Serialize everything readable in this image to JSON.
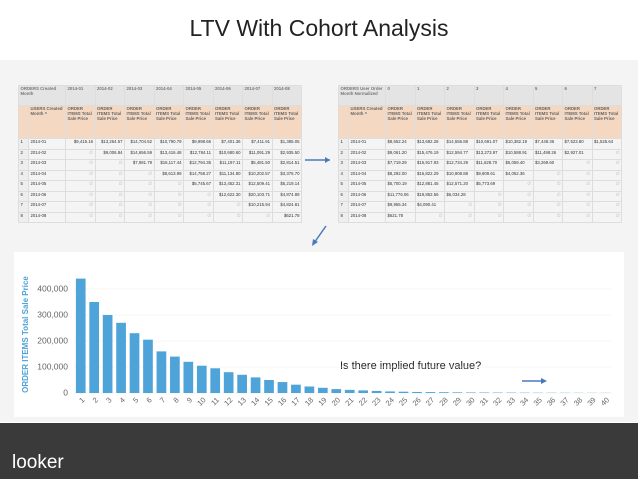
{
  "title": "LTV With Cohort Analysis",
  "left_table": {
    "corner": "ORDERS Created Month",
    "columns": [
      "2014-01",
      "2014-02",
      "2014-03",
      "2014-04",
      "2014-05",
      "2014-06",
      "2014-07",
      "2014-08"
    ],
    "sub_label": "USERS Created Month ^",
    "measures": [
      "ORDER ITEMS Total Sale Price",
      "ORDER ITEMS Total Sale Price",
      "ORDER ITEMS Total Sale Price",
      "ORDER ITEMS Total Sale Price",
      "ORDER ITEMS Total Sale Price",
      "ORDER ITEMS Total Sale Price",
      "ORDER ITEMS Total Sale Price",
      "ORDER ITEMS Total Sale Price"
    ],
    "rows": [
      {
        "n": "1",
        "label": "2014-01",
        "cells": [
          "$9,415.16",
          "$13,264.57",
          "$14,704.52",
          "$10,790.79",
          "$9,998.66",
          "$7,401.36",
          "$7,411.91",
          "$1,385.05"
        ]
      },
      {
        "n": "2",
        "label": "2014-02",
        "cells": [
          "∅",
          "$9,006.84",
          "$14,656.59",
          "$13,416.48",
          "$12,784.11",
          "$10,680.60",
          "$11,091.29",
          "$2,935.50"
        ]
      },
      {
        "n": "3",
        "label": "2014-03",
        "cells": [
          "∅",
          "∅",
          "$7,981.79",
          "$16,117.44",
          "$12,794.35",
          "$11,197.11",
          "$5,481.50",
          "$2,814.51"
        ]
      },
      {
        "n": "4",
        "label": "2014-04",
        "cells": [
          "∅",
          "∅",
          "∅",
          "$8,613.99",
          "$14,758.27",
          "$11,134.80",
          "$10,202.57",
          "$3,375.70"
        ]
      },
      {
        "n": "5",
        "label": "2014-05",
        "cells": [
          "∅",
          "∅",
          "∅",
          "∅",
          "$5,745.67",
          "$13,452.31",
          "$12,509.41",
          "$5,219.14"
        ]
      },
      {
        "n": "6",
        "label": "2014-06",
        "cells": [
          "∅",
          "∅",
          "∅",
          "∅",
          "∅",
          "$12,622.30",
          "$20,103.71",
          "$4,874.89"
        ]
      },
      {
        "n": "7",
        "label": "2014-07",
        "cells": [
          "∅",
          "∅",
          "∅",
          "∅",
          "∅",
          "∅",
          "$10,215.94",
          "$4,824.81"
        ]
      },
      {
        "n": "8",
        "label": "2014-08",
        "cells": [
          "∅",
          "∅",
          "∅",
          "∅",
          "∅",
          "∅",
          "∅",
          "$621.78"
        ]
      }
    ]
  },
  "right_table": {
    "corner": "ORDERS User Order Month Normalized",
    "columns": [
      "0",
      "1",
      "2",
      "3",
      "4",
      "5",
      "6",
      "7"
    ],
    "sub_label": "USERS Created Month ^",
    "measures": [
      "ORDER ITEMS Total Sale Price",
      "ORDER ITEMS Total Sale Price",
      "ORDER ITEMS Total Sale Price",
      "ORDER ITEMS Total Sale Price",
      "ORDER ITEMS Total Sale Price",
      "ORDER ITEMS Total Sale Price",
      "ORDER ITEMS Total Sale Price",
      "ORDER ITEMS Total Sale Price"
    ],
    "rows": [
      {
        "n": "1",
        "label": "2014-01",
        "cells": [
          "$8,552.24",
          "$13,682.28",
          "$14,556.88",
          "$10,691.07",
          "$10,382.19",
          "$7,448.36",
          "$7,523.80",
          "$1,525.64"
        ]
      },
      {
        "n": "2",
        "label": "2014-02",
        "cells": [
          "$9,061.20",
          "$15,476.19",
          "$12,594.77",
          "$13,273.97",
          "$10,588.91",
          "$11,498.26",
          "$2,927.01",
          "∅"
        ]
      },
      {
        "n": "3",
        "label": "2014-03",
        "cells": [
          "$7,719.29",
          "$15,917.93",
          "$12,734.29",
          "$11,628.70",
          "$5,059.40",
          "$3,269.60",
          "∅",
          "∅"
        ]
      },
      {
        "n": "4",
        "label": "2014-04",
        "cells": [
          "$8,292.00",
          "$16,822.29",
          "$10,908.88",
          "$9,809.61",
          "$4,052.36",
          "∅",
          "∅",
          "∅"
        ]
      },
      {
        "n": "5",
        "label": "2014-05",
        "cells": [
          "$5,700.19",
          "$12,881.45",
          "$12,571.20",
          "$5,773.69",
          "∅",
          "∅",
          "∅",
          "∅"
        ]
      },
      {
        "n": "6",
        "label": "2014-06",
        "cells": [
          "$11,776.06",
          "$19,852.56",
          "$6,034.28",
          "∅",
          "∅",
          "∅",
          "∅",
          "∅"
        ]
      },
      {
        "n": "7",
        "label": "2014-07",
        "cells": [
          "$9,955.34",
          "$4,090.41",
          "∅",
          "∅",
          "∅",
          "∅",
          "∅",
          "∅"
        ]
      },
      {
        "n": "8",
        "label": "2014-08",
        "cells": [
          "$621.78",
          "∅",
          "∅",
          "∅",
          "∅",
          "∅",
          "∅",
          "∅"
        ]
      }
    ]
  },
  "chart_data": {
    "type": "bar",
    "ylabel": "ORDER ITEMS Total Sale Price",
    "categories": [
      "1",
      "2",
      "3",
      "4",
      "5",
      "6",
      "7",
      "8",
      "9",
      "10",
      "11",
      "12",
      "13",
      "14",
      "15",
      "16",
      "17",
      "18",
      "19",
      "20",
      "21",
      "22",
      "23",
      "24",
      "25",
      "26",
      "27",
      "28",
      "29",
      "30",
      "31",
      "32",
      "33",
      "34",
      "35",
      "36",
      "37",
      "38",
      "39",
      "40"
    ],
    "values": [
      440000,
      350000,
      300000,
      270000,
      230000,
      205000,
      160000,
      140000,
      120000,
      105000,
      95000,
      80000,
      70000,
      60000,
      50000,
      42000,
      32000,
      25000,
      20000,
      15000,
      12000,
      10000,
      8000,
      6000,
      5000,
      4000,
      3500,
      3000,
      2500,
      2000,
      1800,
      1600,
      1400,
      1200,
      1000,
      900,
      800,
      700,
      600,
      500
    ],
    "color": "#4ea3d8",
    "ylim": [
      0,
      450000
    ],
    "yticks": [
      0,
      {
        "value": 100000,
        "label": "100,000"
      },
      {
        "value": 200000,
        "label": "200,000"
      },
      {
        "value": 300000,
        "label": "300,000"
      },
      {
        "value": 400000,
        "label": "400,000"
      }
    ],
    "grid": true,
    "annotation": "Is there implied future value?"
  },
  "logo": "looker"
}
